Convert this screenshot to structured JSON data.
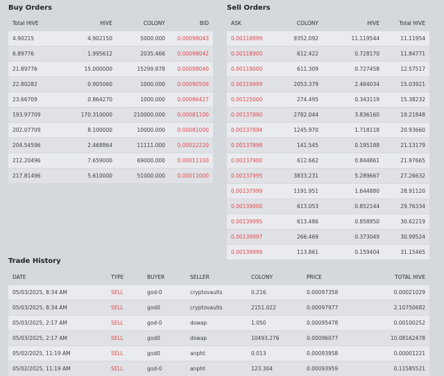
{
  "buy": {
    "title": "Buy Orders",
    "headers": [
      "Total HIVE",
      "HIVE",
      "COLONY",
      "BID"
    ],
    "rows": [
      [
        "4.90215",
        "4.902150",
        "5000.000",
        "0.00098043"
      ],
      [
        "6.89776",
        "1.995612",
        "2035.466",
        "0.00098042"
      ],
      [
        "21.89776",
        "15.000000",
        "15299.878",
        "0.00098040"
      ],
      [
        "22.80282",
        "0.905060",
        "1000.000",
        "0.00090506"
      ],
      [
        "23.66709",
        "0.864270",
        "1000.000",
        "0.00086427"
      ],
      [
        "193.97709",
        "170.310000",
        "210000.000",
        "0.00081100"
      ],
      [
        "202.07709",
        "8.100000",
        "10000.000",
        "0.00081000"
      ],
      [
        "204.54596",
        "2.468864",
        "11111.000",
        "0.00022220"
      ],
      [
        "212.20496",
        "7.659000",
        "69000.000",
        "0.00011100"
      ],
      [
        "217.81496",
        "5.610000",
        "51000.000",
        "0.00011000"
      ]
    ]
  },
  "sell": {
    "title": "Sell Orders",
    "headers": [
      "ASK",
      "COLONY",
      "HIVE",
      "Total HIVE"
    ],
    "rows": [
      [
        "0.00118899",
        "9352.092",
        "11.119544",
        "11.11954"
      ],
      [
        "0.00118900",
        "612.422",
        "0.728170",
        "11.84771"
      ],
      [
        "0.00119000",
        "611.309",
        "0.727458",
        "12.57517"
      ],
      [
        "0.00119999",
        "2053.379",
        "2.464034",
        "15.03921"
      ],
      [
        "0.00125000",
        "274.495",
        "0.343119",
        "15.38232"
      ],
      [
        "0.00137890",
        "2782.044",
        "3.836160",
        "19.21848"
      ],
      [
        "0.00137894",
        "1245.970",
        "1.718118",
        "20.93660"
      ],
      [
        "0.00137898",
        "141.545",
        "0.195188",
        "21.13179"
      ],
      [
        "0.00137900",
        "612.662",
        "0.844861",
        "21.97665"
      ],
      [
        "0.00137995",
        "3833.231",
        "5.289667",
        "27.26632"
      ],
      [
        "0.00137999",
        "1191.951",
        "1.644880",
        "28.91120"
      ],
      [
        "0.00139000",
        "613.053",
        "0.852144",
        "29.76334"
      ],
      [
        "0.00139995",
        "613.486",
        "0.858850",
        "30.62219"
      ],
      [
        "0.00139997",
        "266.469",
        "0.373049",
        "30.99524"
      ],
      [
        "0.00139999",
        "113.861",
        "0.159404",
        "31.15465"
      ]
    ]
  },
  "trade": {
    "title": "Trade History",
    "headers": [
      "DATE",
      "TYPE",
      "BUYER",
      "SELLER",
      "COLONY",
      "PRICE",
      "TOTAL HIVE"
    ],
    "rows": [
      [
        "05/03/2025, 8:34 AM",
        "SELL",
        "god-0",
        "cryptovaults",
        "0.216",
        "0.00097358",
        "0.00021029"
      ],
      [
        "05/03/2025, 8:34 AM",
        "SELL",
        "god0",
        "cryptovaults",
        "2151.022",
        "0.00097977",
        "2.10750682"
      ],
      [
        "05/03/2025, 2:17 AM",
        "SELL",
        "god-0",
        "dswap",
        "1.050",
        "0.00095478",
        "0.00100252"
      ],
      [
        "05/03/2025, 2:17 AM",
        "SELL",
        "god0",
        "dswap",
        "10493.276",
        "0.00096077",
        "10.08162478"
      ],
      [
        "05/02/2025, 11:19 AM",
        "SELL",
        "god0",
        "anpht",
        "0.013",
        "0.00093958",
        "0.00001221"
      ],
      [
        "05/02/2025, 11:19 AM",
        "SELL",
        "god-0",
        "anpht",
        "123.304",
        "0.00093959",
        "0.11585521"
      ]
    ]
  },
  "colors": {
    "accent_red": "#e0484d",
    "row_light": "#e9ebee",
    "row_dark": "#dfe1e5",
    "background": "#d5d8dd"
  }
}
